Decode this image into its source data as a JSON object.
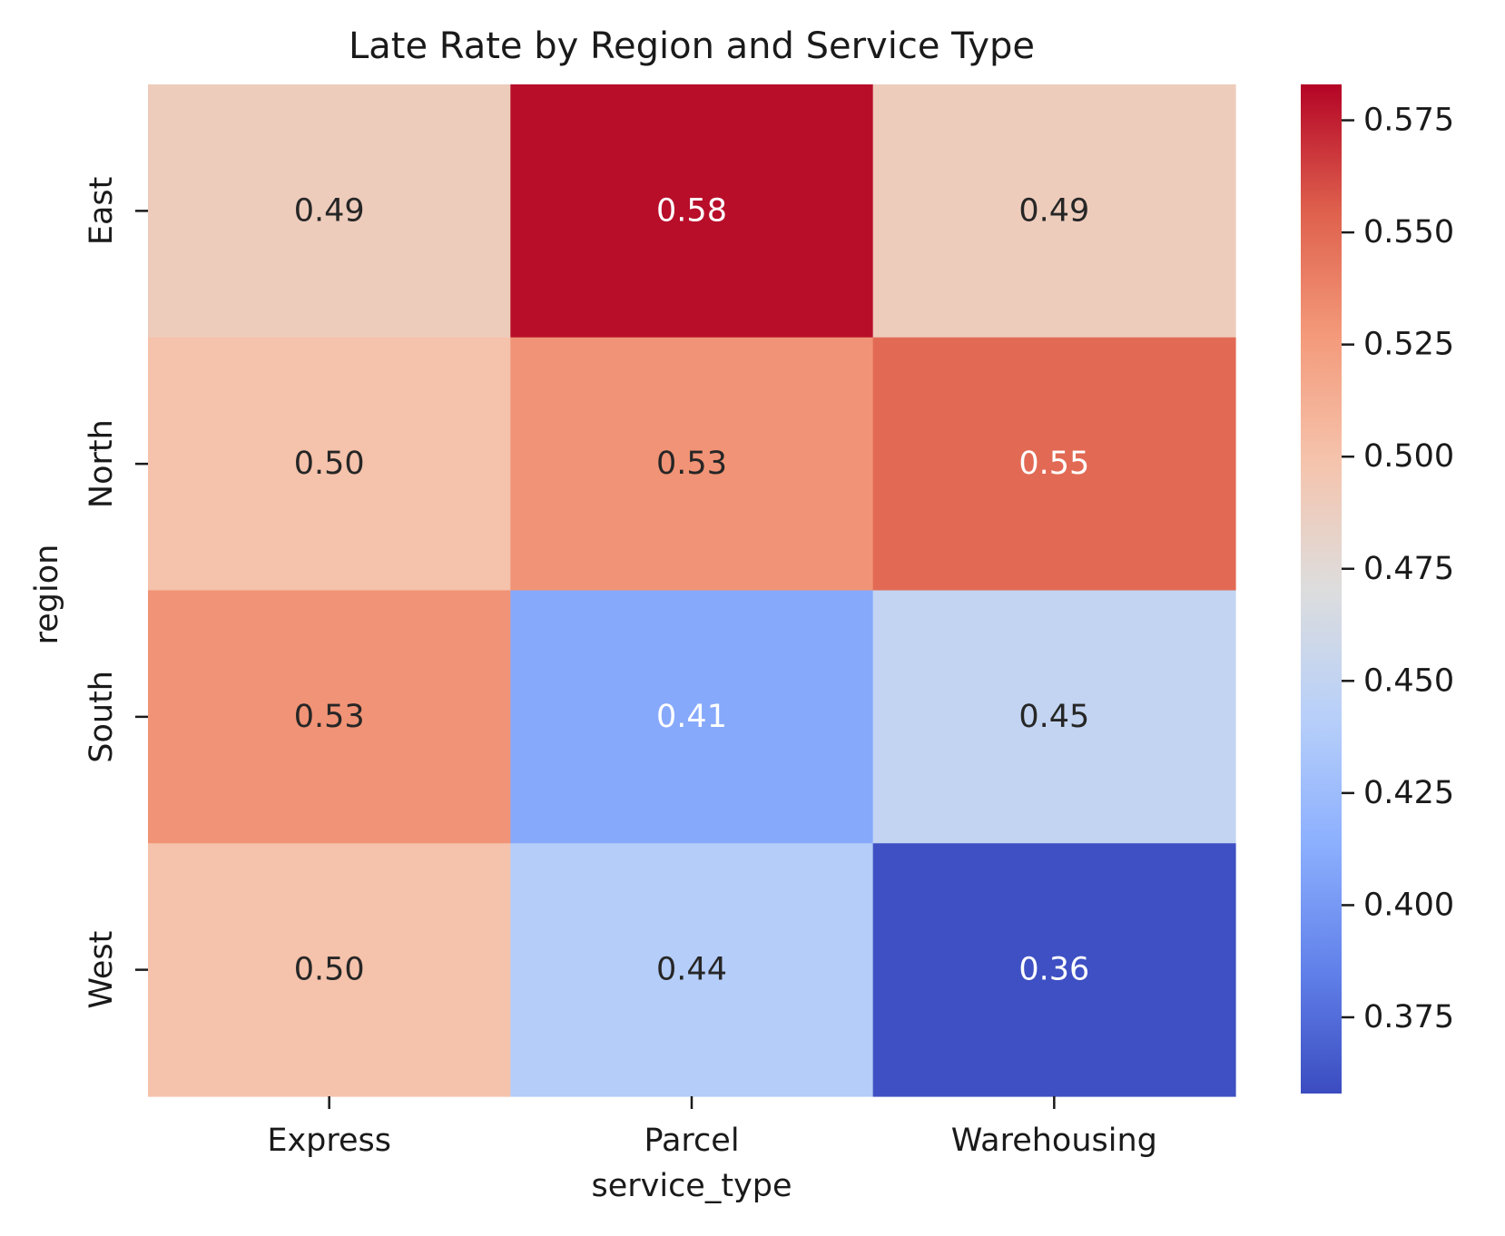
{
  "chart_data": {
    "type": "heatmap",
    "title": "Late Rate by Region and Service Type",
    "xlabel": "service_type",
    "ylabel": "region",
    "x_categories": [
      "Express",
      "Parcel",
      "Warehousing"
    ],
    "y_categories": [
      "East",
      "North",
      "South",
      "West"
    ],
    "values": [
      [
        0.49,
        0.58,
        0.49
      ],
      [
        0.5,
        0.53,
        0.55
      ],
      [
        0.53,
        0.41,
        0.45
      ],
      [
        0.5,
        0.44,
        0.36
      ]
    ],
    "cell_labels": [
      [
        "0.49",
        "0.58",
        "0.49"
      ],
      [
        "0.50",
        "0.53",
        "0.55"
      ],
      [
        "0.53",
        "0.41",
        "0.45"
      ],
      [
        "0.50",
        "0.44",
        "0.36"
      ]
    ],
    "colormap": "coolwarm",
    "color_range": [
      0.358,
      0.583
    ],
    "colorbar_ticks": [
      0.375,
      0.4,
      0.425,
      0.45,
      0.475,
      0.5,
      0.525,
      0.55,
      0.575
    ],
    "colorbar_tick_labels": [
      "0.375",
      "0.400",
      "0.425",
      "0.450",
      "0.475",
      "0.500",
      "0.525",
      "0.550",
      "0.575"
    ],
    "colors": {
      "low": "#3b4cc0",
      "mid": "#dddddd",
      "high": "#b40426",
      "text_dark": "#262626",
      "text_light": "#ffffff"
    }
  }
}
